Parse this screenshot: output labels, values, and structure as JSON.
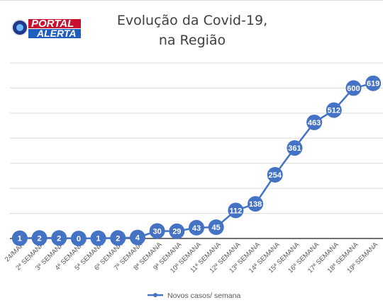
{
  "logo": {
    "line1": "PORTAL",
    "line2": "ALERTA"
  },
  "chart_data": {
    "type": "line",
    "title": [
      "Evolução da Covid-19,",
      "na Região"
    ],
    "categories": [
      "24/MAR",
      "2ª SEMANA",
      "3ª SEMANA",
      "4ª SEMANA",
      "5ª SEMANA",
      "6ª SEMANA",
      "7ª SEMANA",
      "8ª SEMANA",
      "9ª SEMANA",
      "10ª SEMANA",
      "11ª SEMANA",
      "12ª SEMANA",
      "13ª SEMANA",
      "14ª SEMANA",
      "15ª SEMANA",
      "16ª SEMANA",
      "17ª SEMANA",
      "18ª SEMANA",
      "19ª SEMANA"
    ],
    "series": [
      {
        "name": "Novos casos/ semana",
        "values": [
          1,
          2,
          2,
          0,
          1,
          2,
          4,
          30,
          29,
          43,
          45,
          112,
          138,
          254,
          361,
          463,
          512,
          600,
          619
        ]
      }
    ],
    "ylim": [
      0,
      700
    ],
    "grid": true,
    "legend": "bottom",
    "colors": {
      "line": "#4472c4",
      "marker": "#4472c4",
      "grid": "#d9d9d9",
      "axis": "#404040"
    }
  }
}
